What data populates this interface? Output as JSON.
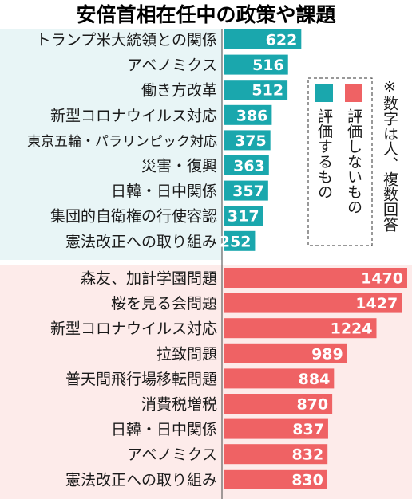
{
  "colors": {
    "approve": "#1aa7ad",
    "disapprove": "#ef6264",
    "approve_bg": "#e8f5f6",
    "disapprove_bg": "#fdebea",
    "bar_text": "#ffffff",
    "label_text": "#1a1a1a"
  },
  "chart_data": {
    "type": "bar",
    "orientation": "horizontal",
    "title": "安倍首相在任中の政策や課題",
    "legend": {
      "placement": "right",
      "items": [
        "評価するもの",
        "評価しないもの"
      ]
    },
    "note": "※数字は人、複数回答",
    "series": [
      {
        "name": "評価するもの",
        "categories": [
          "トランプ米大統領との関係",
          "アベノミクス",
          "働き方改革",
          "新型コロナウイルス対応",
          "東京五輪・パラリンピック対応",
          "災害・復興",
          "日韓・日中関係",
          "集団的自衛権の行使容認",
          "憲法改正への取り組み"
        ],
        "values": [
          622,
          516,
          512,
          386,
          375,
          363,
          357,
          317,
          252
        ]
      },
      {
        "name": "評価しないもの",
        "categories": [
          "森友、加計学園問題",
          "桜を見る会問題",
          "新型コロナウイルス対応",
          "拉致問題",
          "普天間飛行場移転問題",
          "消費税増税",
          "日韓・日中関係",
          "アベノミクス",
          "憲法改正への取り組み"
        ],
        "values": [
          1470,
          1427,
          1224,
          989,
          884,
          870,
          837,
          832,
          830
        ]
      }
    ],
    "xlim": [
      0,
      1470
    ],
    "grid": false
  }
}
